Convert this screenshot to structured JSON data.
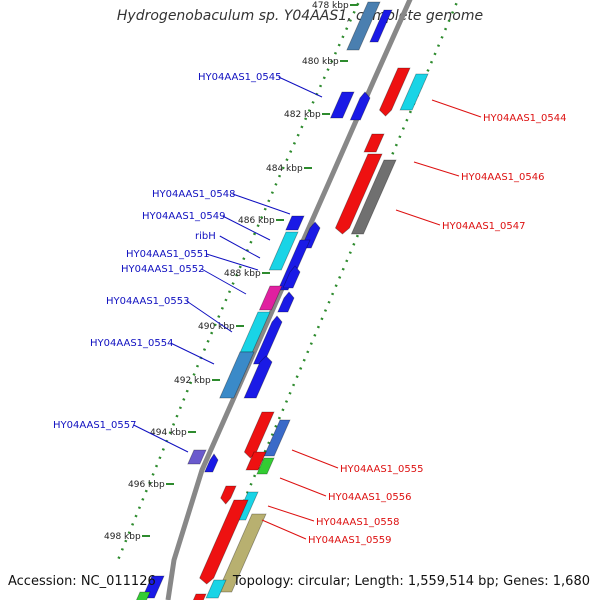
{
  "title": "Hydrogenobaculum sp. Y04AAS1, complete genome",
  "footer": {
    "accession": "Accession: NC_011126",
    "summary": "Topology: circular; Length: 1,559,514 bp; Genes: 1,680"
  },
  "colors": {
    "backbone": "#888888",
    "tick": "#2e8b2e",
    "forward_label": "#1010c0",
    "reverse_label": "#dd1111",
    "gene_blue": "#1a1ae6",
    "gene_red": "#ee1111",
    "gene_cyan": "#19d4e6",
    "gene_magenta": "#e020a0",
    "gene_grey": "#707070",
    "gene_green": "#33cc33",
    "gene_olive": "#b8b070",
    "gene_purple": "#6a5acd"
  },
  "ticks": [
    "478 kbp",
    "480 kbp",
    "482 kbp",
    "484 kbp",
    "486 kbp",
    "488 kbp",
    "490 kbp",
    "492 kbp",
    "494 kbp",
    "496 kbp",
    "498 kbp"
  ],
  "left_labels": [
    "HY04AAS1_0545",
    "HY04AAS1_0548",
    "HY04AAS1_0549",
    "ribH",
    "HY04AAS1_0551",
    "HY04AAS1_0552",
    "HY04AAS1_0553",
    "HY04AAS1_0554",
    "HY04AAS1_0557"
  ],
  "right_labels": [
    "HY04AAS1_0544",
    "HY04AAS1_0546",
    "HY04AAS1_0547",
    "HY04AAS1_0555",
    "HY04AAS1_0556",
    "HY04AAS1_0558",
    "HY04AAS1_0559"
  ]
}
